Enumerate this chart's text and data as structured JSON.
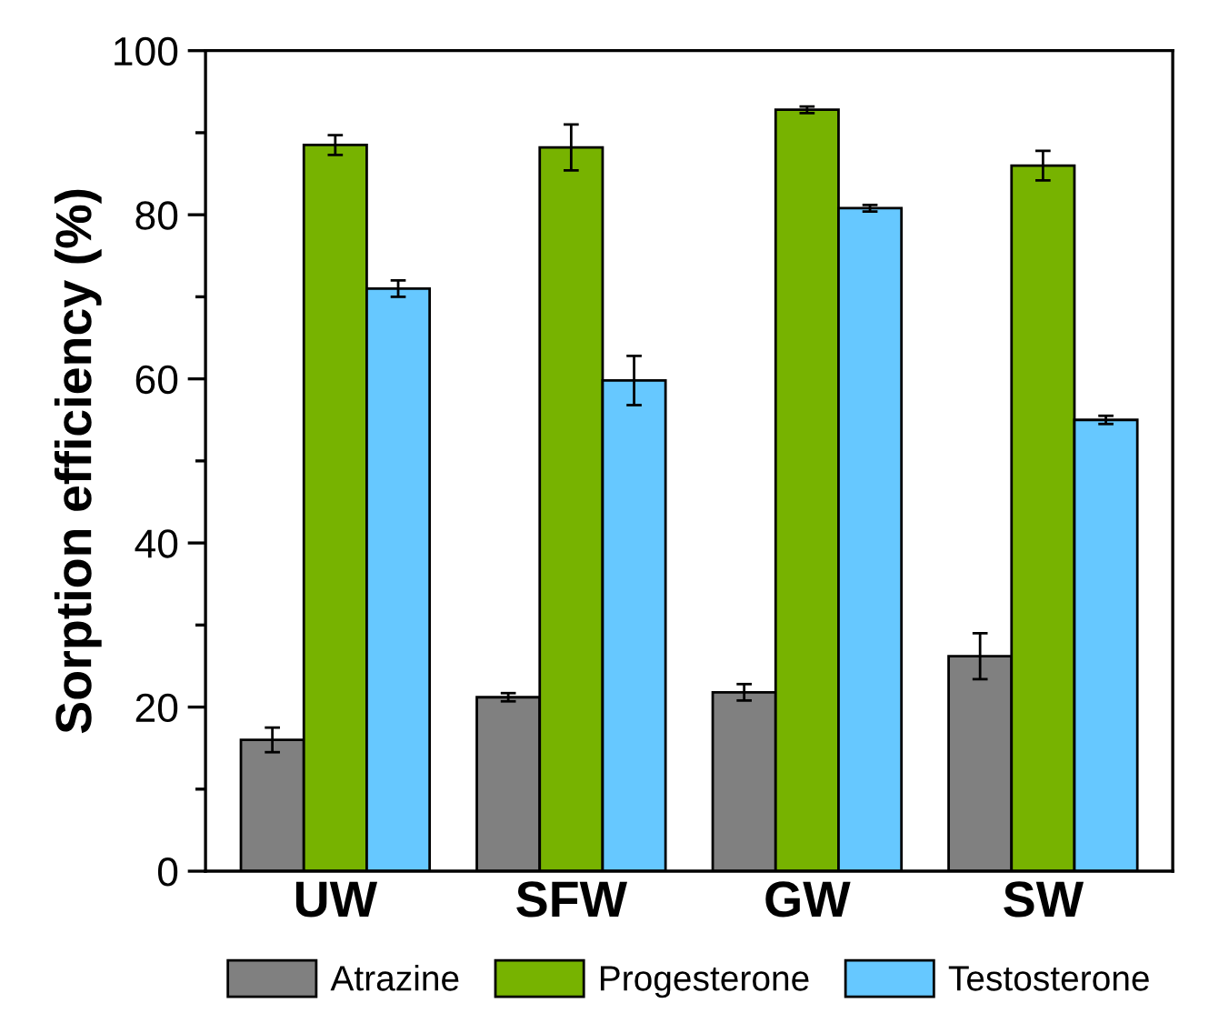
{
  "chart_data": {
    "type": "bar",
    "ylabel": "Sorption efficiency (%)",
    "categories": [
      "UW",
      "SFW",
      "GW",
      "SW"
    ],
    "series": [
      {
        "name": "Atrazine",
        "color": "#808080",
        "values": [
          16.0,
          21.2,
          21.8,
          26.2
        ],
        "errors": [
          1.5,
          0.5,
          1.0,
          2.8
        ]
      },
      {
        "name": "Progesterone",
        "color": "#77b300",
        "values": [
          88.5,
          88.2,
          92.8,
          86.0
        ],
        "errors": [
          1.2,
          2.8,
          0.4,
          1.8
        ]
      },
      {
        "name": "Testosterone",
        "color": "#66c8ff",
        "values": [
          71.0,
          59.8,
          80.8,
          55.0
        ],
        "errors": [
          1.0,
          3.0,
          0.4,
          0.5
        ]
      }
    ],
    "ylim": [
      0,
      100
    ],
    "yticks": [
      0,
      {
        "value": 10,
        "label": null
      },
      20,
      {
        "value": 30,
        "label": null
      },
      40,
      {
        "value": 50,
        "label": null
      },
      60,
      {
        "value": 70,
        "label": null
      },
      80,
      {
        "value": 90,
        "label": null
      },
      100
    ],
    "grid": false,
    "legend": "bottom"
  }
}
